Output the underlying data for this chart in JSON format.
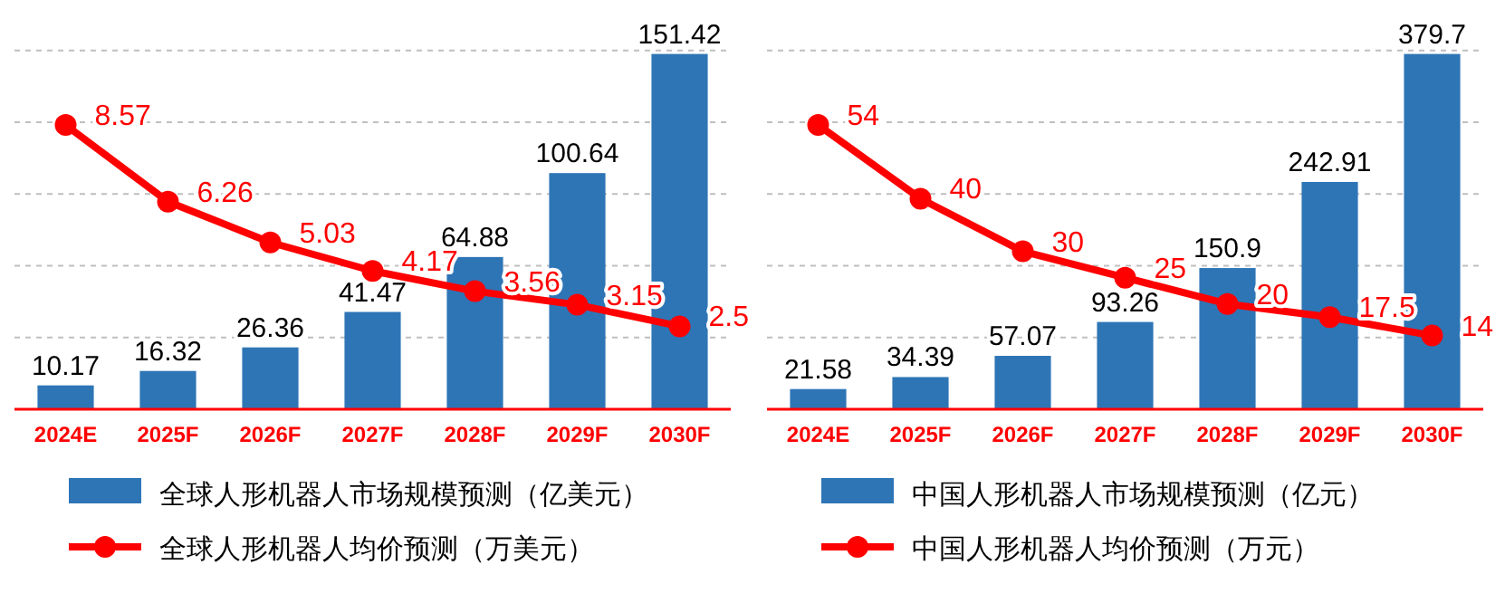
{
  "chart_data": [
    {
      "type": "bar",
      "categories": [
        "2024E",
        "2025F",
        "2026F",
        "2027F",
        "2028F",
        "2029F",
        "2030F"
      ],
      "data_labels": true,
      "grid": "y",
      "legend": "bottom",
      "series": [
        {
          "name": "全球人形机器人市场规模预测（亿美元）",
          "type": "bar",
          "color": "#2e75b6",
          "values": [
            10.17,
            16.32,
            26.36,
            41.47,
            64.88,
            100.64,
            151.42
          ]
        },
        {
          "name": "全球人形机器人均价预测（万美元）",
          "type": "line",
          "axis": "y2",
          "color": "#ff0000",
          "marker": "circle",
          "values": [
            8.57,
            6.26,
            5.03,
            4.17,
            3.56,
            3.15,
            2.5
          ]
        }
      ]
    },
    {
      "type": "bar",
      "categories": [
        "2024E",
        "2025F",
        "2026F",
        "2027F",
        "2028F",
        "2029F",
        "2030F"
      ],
      "data_labels": true,
      "grid": "y",
      "legend": "bottom",
      "series": [
        {
          "name": "中国人形机器人市场规模预测（亿元）",
          "type": "bar",
          "color": "#2e75b6",
          "values": [
            21.58,
            34.39,
            57.07,
            93.26,
            150.9,
            242.91,
            379.7
          ]
        },
        {
          "name": "中国人形机器人均价预测（万元）",
          "type": "line",
          "axis": "y2",
          "color": "#ff0000",
          "marker": "circle",
          "values": [
            54,
            40,
            30,
            25,
            20,
            17.5,
            14
          ]
        }
      ]
    }
  ]
}
